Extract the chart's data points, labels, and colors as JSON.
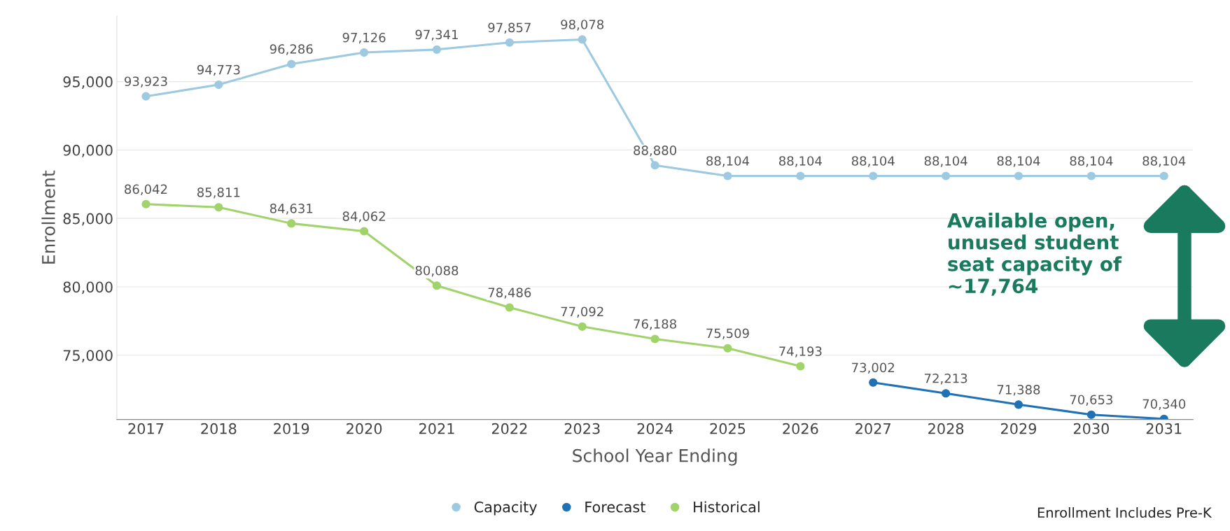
{
  "chart_data": {
    "type": "line",
    "xlabel": "School Year Ending",
    "ylabel": "Enrollment",
    "xlim": [
      2016.6,
      2031.4
    ],
    "xticks": [
      2017,
      2018,
      2019,
      2020,
      2021,
      2022,
      2023,
      2024,
      2025,
      2026,
      2027,
      2028,
      2029,
      2030,
      2031
    ],
    "ylim": [
      70300,
      99800
    ],
    "yticks": [
      {
        "value": 75000,
        "label": "75,000"
      },
      {
        "value": 80000,
        "label": "80,000"
      },
      {
        "value": 85000,
        "label": "85,000"
      },
      {
        "value": 90000,
        "label": "90,000"
      },
      {
        "value": 95000,
        "label": "95,000"
      }
    ],
    "grid": "y",
    "legend": "bottom",
    "marker": "circle",
    "line_style": "solid",
    "series": [
      {
        "name": "Capacity",
        "color": "#9ecae1",
        "x": [
          2017,
          2018,
          2019,
          2020,
          2021,
          2022,
          2023,
          2024,
          2025,
          2026,
          2027,
          2028,
          2029,
          2030,
          2031
        ],
        "values": [
          93923,
          94773,
          96286,
          97126,
          97341,
          97857,
          98078,
          88880,
          88104,
          88104,
          88104,
          88104,
          88104,
          88104,
          88104
        ],
        "value_labels": [
          "93,923",
          "94,773",
          "96,286",
          "97,126",
          "97,341",
          "97,857",
          "98,078",
          "88,880",
          "88,104",
          "88,104",
          "88,104",
          "88,104",
          "88,104",
          "88,104",
          "88,104"
        ]
      },
      {
        "name": "Forecast",
        "color": "#2171b5",
        "x": [
          2027,
          2028,
          2029,
          2030,
          2031
        ],
        "values": [
          73002,
          72213,
          71388,
          70653,
          70340
        ],
        "value_labels": [
          "73,002",
          "72,213",
          "71,388",
          "70,653",
          "70,340"
        ]
      },
      {
        "name": "Historical",
        "color": "#a1d36b",
        "x": [
          2017,
          2018,
          2019,
          2020,
          2021,
          2022,
          2023,
          2024,
          2025,
          2026
        ],
        "values": [
          86042,
          85811,
          84631,
          84062,
          80088,
          78486,
          77092,
          76188,
          75509,
          74193
        ],
        "value_labels": [
          "86,042",
          "85,811",
          "84,631",
          "84,062",
          "80,088",
          "78,486",
          "77,092",
          "76,188",
          "75,509",
          "74,193"
        ]
      }
    ],
    "annotations": [
      "Available open,\nunused student\nseat capacity of\n~17,764",
      "Enrollment Includes Pre-K"
    ]
  }
}
